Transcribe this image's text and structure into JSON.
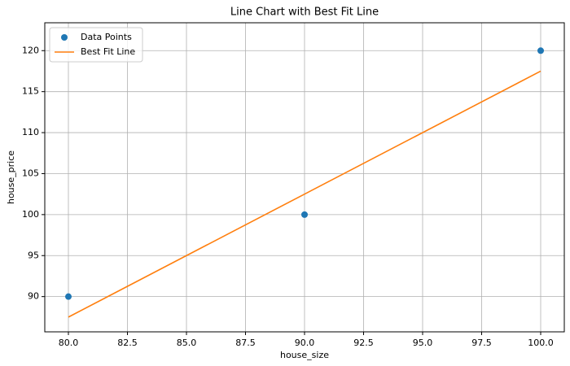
{
  "chart_data": {
    "type": "line",
    "title": "Line Chart with Best Fit Line",
    "x_label": "house_size",
    "y_label": "house_price",
    "xlim": [
      79.0,
      101.0
    ],
    "xticks": [
      {
        "value": 80,
        "label": "80.0"
      },
      82.5,
      {
        "value": 85,
        "label": "85.0"
      },
      87.5,
      {
        "value": 90,
        "label": "90.0"
      },
      92.5,
      {
        "value": 95,
        "label": "95.0"
      },
      97.5,
      {
        "value": 100,
        "label": "100.0"
      }
    ],
    "ylim": [
      85.7,
      123.4
    ],
    "yticks": [
      90,
      95,
      100,
      105,
      110,
      115,
      120
    ],
    "grid": true,
    "legend": "upper left",
    "series": [
      {
        "name": "Data Points",
        "color": "#1f77b4",
        "mode": "markers",
        "x": [
          80,
          90,
          100
        ],
        "values": [
          90,
          100,
          120
        ]
      },
      {
        "name": "Best Fit Line",
        "color": "#ff7f0e",
        "mode": "line",
        "x": [
          80,
          90,
          100
        ],
        "values": [
          87.5,
          102.5,
          117.5
        ]
      }
    ]
  }
}
